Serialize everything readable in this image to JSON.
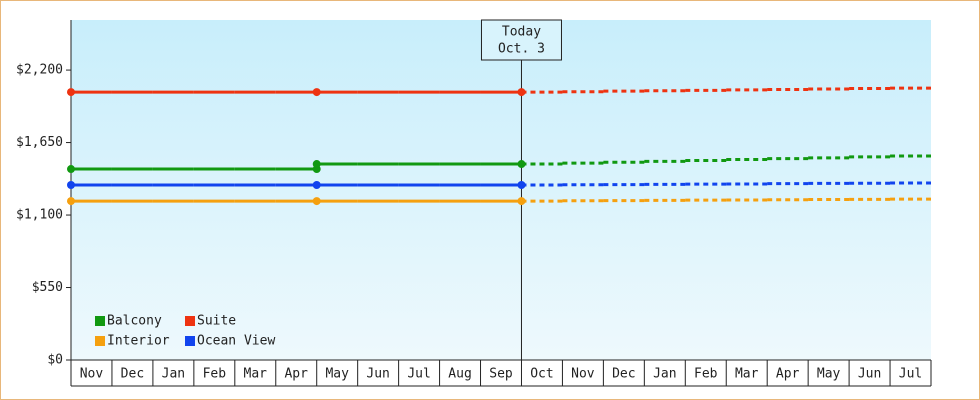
{
  "chart_data": {
    "type": "line",
    "categories": [
      "Nov",
      "Dec",
      "Jan",
      "Feb",
      "Mar",
      "Apr",
      "May",
      "Jun",
      "Jul",
      "Aug",
      "Sep",
      "Oct",
      "Nov",
      "Dec",
      "Jan",
      "Feb",
      "Mar",
      "Apr",
      "May",
      "Jun",
      "Jul"
    ],
    "series": [
      {
        "name": "Balcony",
        "color": "#119911",
        "values": [
          1449,
          1449,
          1449,
          1449,
          1449,
          1449,
          1487,
          1487,
          1487,
          1487,
          1487,
          1487,
          1494,
          1501,
          1507,
          1514,
          1521,
          1528,
          1534,
          1541,
          1548
        ]
      },
      {
        "name": "Suite",
        "color": "#ee3311",
        "values": [
          2033,
          2033,
          2033,
          2033,
          2033,
          2033,
          2033,
          2033,
          2033,
          2033,
          2033,
          2033,
          2036,
          2040,
          2043,
          2046,
          2050,
          2053,
          2056,
          2060,
          2063
        ]
      },
      {
        "name": "Interior",
        "color": "#f5a00f",
        "values": [
          1206,
          1206,
          1206,
          1206,
          1206,
          1206,
          1206,
          1206,
          1206,
          1206,
          1206,
          1206,
          1208,
          1209,
          1211,
          1213,
          1214,
          1216,
          1218,
          1219,
          1221
        ]
      },
      {
        "name": "Ocean View",
        "color": "#1144ee",
        "values": [
          1328,
          1328,
          1328,
          1328,
          1328,
          1328,
          1328,
          1328,
          1328,
          1328,
          1328,
          1328,
          1330,
          1331,
          1333,
          1335,
          1336,
          1338,
          1340,
          1341,
          1343
        ]
      }
    ],
    "annotation": {
      "text": [
        "Today",
        "Oct. 3"
      ],
      "x": 11
    },
    "ylim": [
      0,
      2580
    ],
    "yticks": [
      {
        "value": 0,
        "label": "$0"
      },
      {
        "value": 550,
        "label": "$550"
      },
      {
        "value": 1100,
        "label": "$1,100"
      },
      {
        "value": 1650,
        "label": "$1,650"
      },
      {
        "value": 2200,
        "label": "$2,200"
      }
    ],
    "legend": "lower left"
  }
}
